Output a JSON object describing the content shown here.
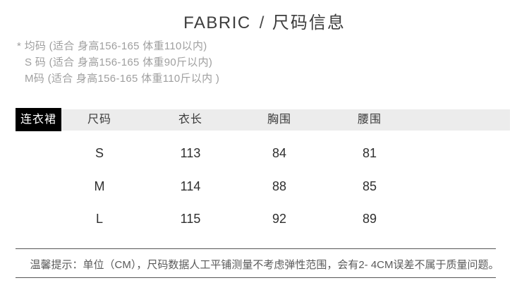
{
  "title": {
    "en": "FABRIC",
    "separator": "/",
    "zh": "尺码信息"
  },
  "size_notes": [
    "* 均码 (适合 身高156-165 体重110以内)",
    "S 码 (适合 身高156-165 体重90斤以内)",
    "M码 (适合 身高156-165 体重110斤以内 )"
  ],
  "table": {
    "category_label": "连衣裙",
    "headers": [
      "尺码",
      "衣长",
      "胸围",
      "腰围"
    ],
    "rows": [
      {
        "cells": [
          "S",
          "113",
          "84",
          "81"
        ]
      },
      {
        "cells": [
          "M",
          "114",
          "88",
          "85"
        ]
      },
      {
        "cells": [
          "L",
          "115",
          "92",
          "89"
        ]
      }
    ],
    "unit": "CM"
  },
  "footer": {
    "tip": "温馨提示：单位（CM），尺码数据人工平铺测量不考虑弹性范围，会有2- 4CM误差不属于质量问题。"
  },
  "colors": {
    "header_row_bg": "#ececec",
    "category_bg": "#000000",
    "category_text": "#ffffff",
    "note_text": "#9f9f9f",
    "body_text": "#2f2f2f",
    "divider": "#565656"
  }
}
